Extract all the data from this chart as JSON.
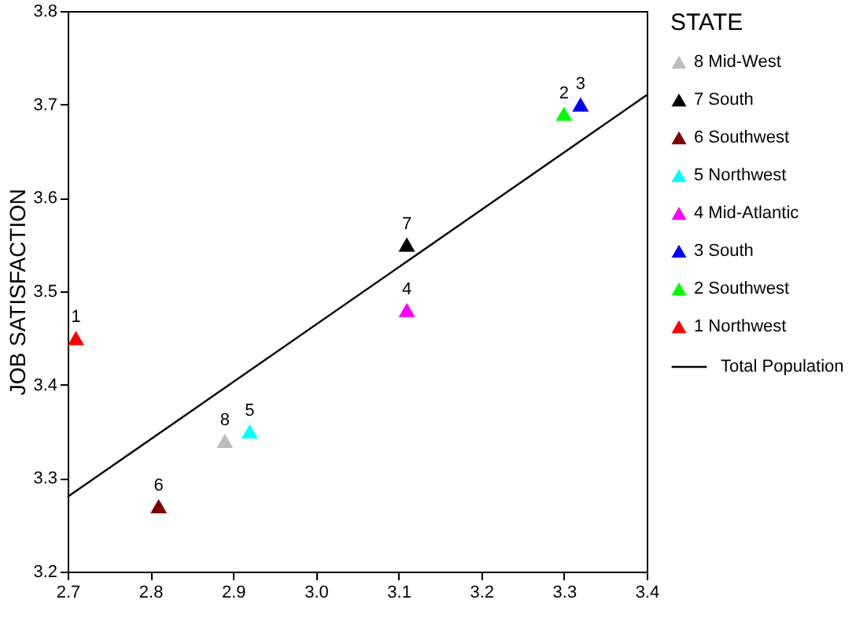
{
  "chart_data": {
    "type": "scatter",
    "ylabel": "JOB SATISFACTION",
    "legend_title": "STATE",
    "legend": "right",
    "marker": "triangle",
    "grid": false,
    "xlim": [
      2.7,
      3.4
    ],
    "xticks": [
      {
        "value": 2.7,
        "label": "2.7"
      },
      {
        "value": 2.8,
        "label": "2.8"
      },
      {
        "value": 2.9,
        "label": "2.9"
      },
      {
        "value": 3.0,
        "label": "3.0"
      },
      {
        "value": 3.1,
        "label": "3.1"
      },
      {
        "value": 3.2,
        "label": "3.2"
      },
      {
        "value": 3.3,
        "label": "3.3"
      },
      {
        "value": 3.4,
        "label": "3.4"
      }
    ],
    "ylim": [
      3.2,
      3.8
    ],
    "yticks": [
      3.2,
      3.3,
      3.4,
      3.5,
      3.6,
      3.7,
      3.8
    ],
    "series": [
      {
        "name": "8 Mid-West",
        "color": "#bdbdbd",
        "x": [
          2.89
        ],
        "values": [
          3.34
        ]
      },
      {
        "name": "7 South",
        "color": "#000000",
        "x": [
          3.11
        ],
        "values": [
          3.55
        ]
      },
      {
        "name": "6 Southwest",
        "color": "#7f0000",
        "x": [
          2.81
        ],
        "values": [
          3.27
        ]
      },
      {
        "name": "5 Northwest",
        "color": "#00ffff",
        "x": [
          2.92
        ],
        "values": [
          3.35
        ]
      },
      {
        "name": "4 Mid-Atlantic",
        "color": "#ff00ff",
        "x": [
          3.11
        ],
        "values": [
          3.48
        ]
      },
      {
        "name": "3 South",
        "color": "#0000ff",
        "x": [
          3.32
        ],
        "values": [
          3.7
        ]
      },
      {
        "name": "2 Southwest",
        "color": "#00ff00",
        "x": [
          3.3
        ],
        "values": [
          3.69
        ]
      },
      {
        "name": "1 Northwest",
        "color": "#ff0000",
        "x": [
          2.71
        ],
        "values": [
          3.45
        ]
      },
      {
        "name": "Total Population",
        "type": "line",
        "marker": "none",
        "color": "#000000",
        "x": [
          2.7,
          3.4
        ],
        "values": [
          3.28,
          3.71
        ]
      }
    ],
    "annotations": [
      {
        "text": "1",
        "x": 2.71,
        "y": 3.45
      },
      {
        "text": "2",
        "x": 3.3,
        "y": 3.69
      },
      {
        "text": "3",
        "x": 3.32,
        "y": 3.7
      },
      {
        "text": "4",
        "x": 3.11,
        "y": 3.48
      },
      {
        "text": "5",
        "x": 2.92,
        "y": 3.35
      },
      {
        "text": "6",
        "x": 2.81,
        "y": 3.27
      },
      {
        "text": "7",
        "x": 3.11,
        "y": 3.55
      },
      {
        "text": "8",
        "x": 2.89,
        "y": 3.34
      }
    ]
  }
}
